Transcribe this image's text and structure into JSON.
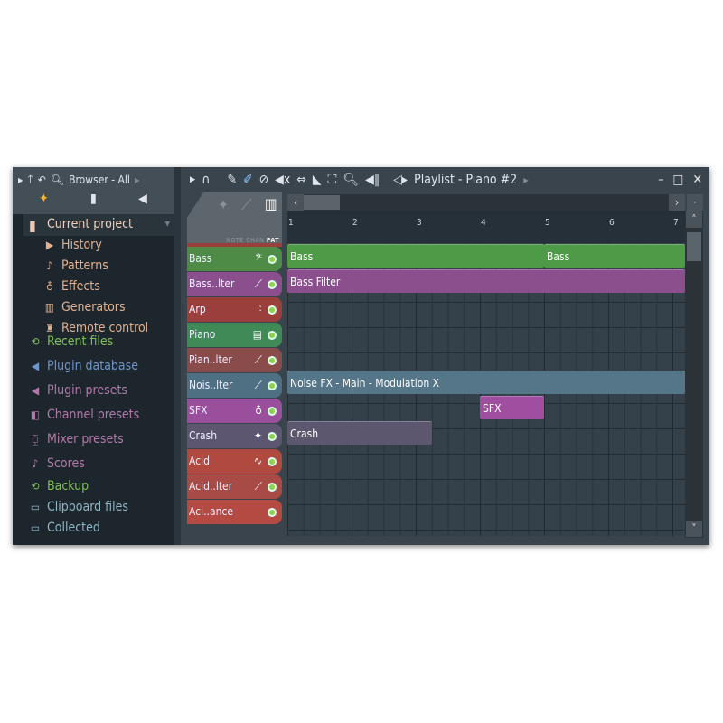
{
  "browser": {
    "title": "Browser - All",
    "current_project": "Current project",
    "subitems": [
      {
        "label": "History",
        "icon": "history-icon"
      },
      {
        "label": "Patterns",
        "icon": "note-icon"
      },
      {
        "label": "Effects",
        "icon": "effects-icon"
      },
      {
        "label": "Generators",
        "icon": "keyboard-icon"
      },
      {
        "label": "Remote control",
        "icon": "knob-icon"
      }
    ],
    "items": [
      {
        "label": "Recent files",
        "color": "#7fbf5a"
      },
      {
        "label": "Plugin database",
        "color": "#6f95c8"
      },
      {
        "label": "Plugin presets",
        "color": "#b07aa8"
      },
      {
        "label": "Channel presets",
        "color": "#b07aa8"
      },
      {
        "label": "Mixer presets",
        "color": "#b07aa8"
      },
      {
        "label": "Scores",
        "color": "#b07aa8"
      },
      {
        "label": "Backup",
        "color": "#7fbf5a"
      },
      {
        "label": "Clipboard files",
        "color": "#8fb4c4"
      },
      {
        "label": "Collected",
        "color": "#8fb4c4"
      }
    ]
  },
  "playlist": {
    "title": "Playlist - Piano #2",
    "modes": {
      "note": "NOTE",
      "chan": "CHAN",
      "pat": "PAT"
    },
    "bars": [
      "1",
      "2",
      "3",
      "4",
      "5",
      "6",
      "7"
    ],
    "tracks": [
      {
        "name": "Bass",
        "icon": "𝄢",
        "color": "#4d8b47"
      },
      {
        "name": "Bass..lter",
        "icon": "⟋",
        "color": "#8a4f8c"
      },
      {
        "name": "Arp",
        "icon": "⁖",
        "color": "#9a3f3b"
      },
      {
        "name": "Piano",
        "icon": "▤",
        "color": "#3f8a57"
      },
      {
        "name": "Pian..lter",
        "icon": "⟋",
        "color": "#8a4c4a"
      },
      {
        "name": "Nois..lter",
        "icon": "⟋",
        "color": "#4f6f83"
      },
      {
        "name": "SFX",
        "icon": "♁",
        "color": "#9a4f9c"
      },
      {
        "name": "Crash",
        "icon": "✦",
        "color": "#5c5670"
      },
      {
        "name": "Acid",
        "icon": "∿",
        "color": "#b04a40"
      },
      {
        "name": "Acid..lter",
        "icon": "⟋",
        "color": "#a84a45"
      },
      {
        "name": "Aci..ance",
        "icon": "",
        "color": "#b44a42"
      }
    ],
    "clips": [
      {
        "label": "Bass",
        "track": 0,
        "start_bar": 1,
        "end_bar": 5,
        "color": "#4d9a47"
      },
      {
        "label": "Bass",
        "track": 0,
        "start_bar": 5,
        "end_bar": 7.2,
        "color": "#4d9a47"
      },
      {
        "label": "Bass Filter",
        "track": 1,
        "start_bar": 1,
        "end_bar": 7.2,
        "color": "#8a4f8c"
      },
      {
        "label": "Noise FX - Main - Modulation X",
        "track": 5,
        "start_bar": 1,
        "end_bar": 7.2,
        "color": "#557588"
      },
      {
        "label": "SFX",
        "track": 6,
        "start_bar": 4,
        "end_bar": 5,
        "color": "#a04fa0"
      },
      {
        "label": "Crash",
        "track": 7,
        "start_bar": 1,
        "end_bar": 3.25,
        "color": "#5c566e"
      }
    ]
  }
}
